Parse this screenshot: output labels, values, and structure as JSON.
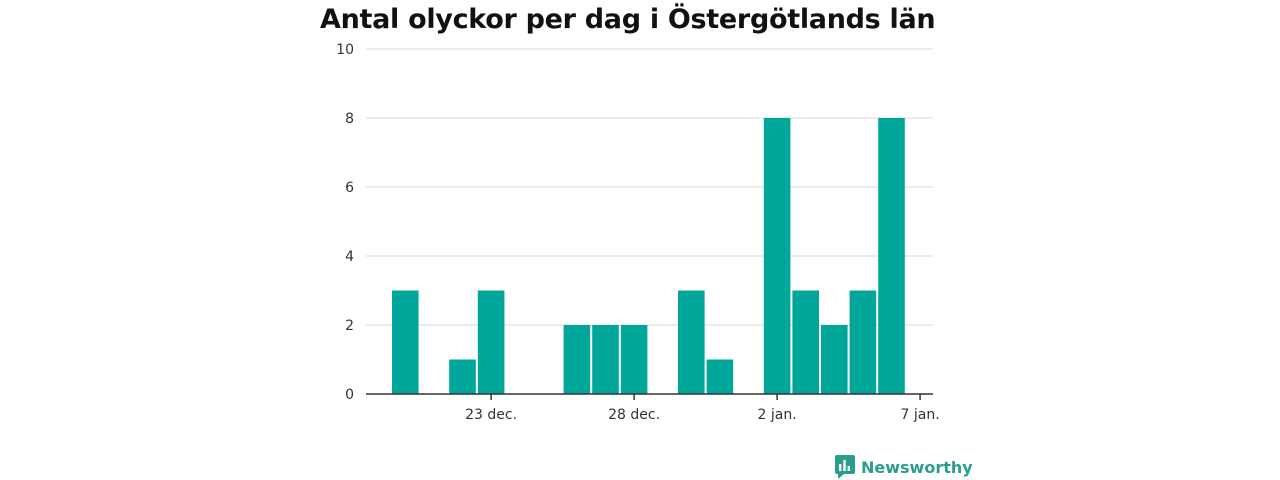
{
  "chart_data": {
    "type": "bar",
    "title": "Antal olyckor per dag i Östergötlands län",
    "xlabel": "",
    "ylabel": "",
    "ylim": [
      0,
      10
    ],
    "yticks": [
      "0",
      "2",
      "4",
      "6",
      "8",
      "10"
    ],
    "grid": true,
    "bar_color": "#00a699",
    "x": [
      "20 dec.",
      "21 dec.",
      "22 dec.",
      "23 dec.",
      "24 dec.",
      "25 dec.",
      "26 dec.",
      "27 dec.",
      "28 dec.",
      "29 dec.",
      "30 dec.",
      "31 dec.",
      "1 jan.",
      "2 jan.",
      "3 jan.",
      "4 jan.",
      "5 jan.",
      "6 jan.",
      "7 jan."
    ],
    "values": [
      3,
      0,
      1,
      3,
      0,
      0,
      2,
      2,
      2,
      0,
      3,
      1,
      0,
      8,
      3,
      2,
      3,
      8,
      0
    ],
    "xticks": [
      "23 dec.",
      "28 dec.",
      "2 jan.",
      "7 jan."
    ]
  },
  "brand": {
    "name": "Newsworthy",
    "color": "#2a9d8f",
    "icon": "newsworthy-logo-icon"
  }
}
